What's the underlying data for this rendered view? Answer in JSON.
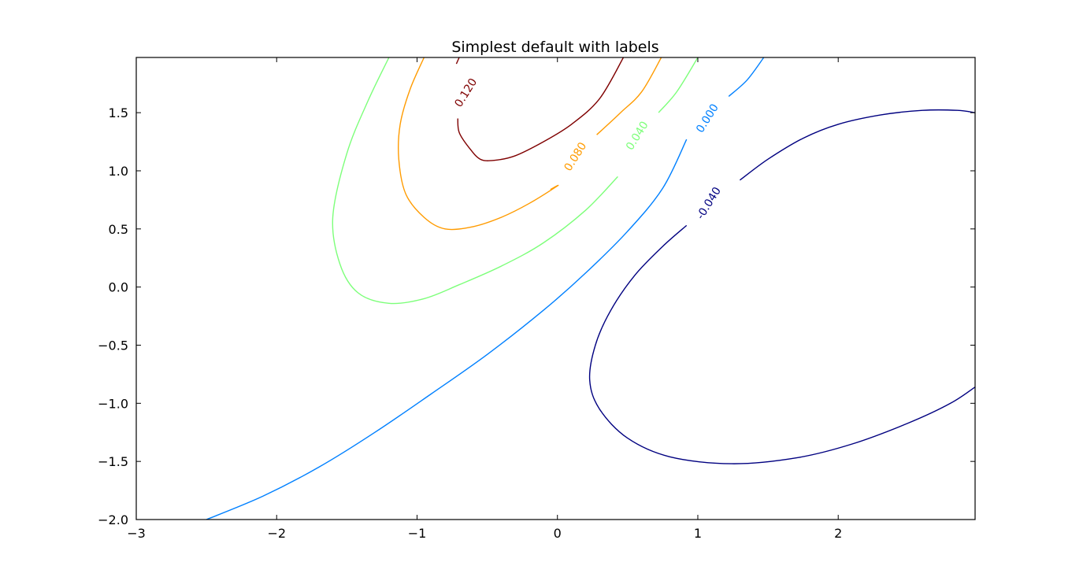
{
  "chart_data": {
    "type": "contour",
    "title": "Simplest default with labels",
    "xlabel": "",
    "ylabel": "",
    "xlim": [
      -3.0,
      2.975
    ],
    "ylim": [
      -2.0,
      1.975
    ],
    "grid": false,
    "x_ticks": [
      -3,
      -2,
      -1,
      0,
      1,
      2
    ],
    "x_tick_labels": [
      "−3",
      "−2",
      "−1",
      "0",
      "1",
      "2"
    ],
    "y_ticks": [
      -2.0,
      -1.5,
      -1.0,
      -0.5,
      0.0,
      0.5,
      1.0,
      1.5
    ],
    "y_tick_labels": [
      "−2.0",
      "−1.5",
      "−1.0",
      "−0.5",
      "0.0",
      "0.5",
      "1.0",
      "1.5"
    ],
    "levels": [
      {
        "value": 0.12,
        "label": "0.120",
        "color": "#7f0000",
        "label_at": [
          -0.65,
          1.67
        ],
        "segments": [
          [
            [
              -0.7,
              1.975
            ],
            [
              -0.72,
              1.92
            ]
          ],
          [
            [
              -0.71,
              1.45
            ],
            [
              -0.7,
              1.33
            ],
            [
              -0.63,
              1.2
            ],
            [
              -0.55,
              1.1
            ],
            [
              -0.45,
              1.09
            ],
            [
              -0.3,
              1.13
            ],
            [
              -0.1,
              1.25
            ],
            [
              0.1,
              1.4
            ],
            [
              0.3,
              1.62
            ],
            [
              0.47,
              1.975
            ]
          ]
        ]
      },
      {
        "value": 0.08,
        "label": "0.080",
        "color": "#ff9b00",
        "label_at": [
          0.13,
          1.12
        ],
        "segments": [
          [
            [
              -0.95,
              1.975
            ],
            [
              -1.05,
              1.7
            ],
            [
              -1.12,
              1.4
            ],
            [
              -1.13,
              1.1
            ],
            [
              -1.08,
              0.8
            ],
            [
              -0.95,
              0.6
            ],
            [
              -0.8,
              0.5
            ],
            [
              -0.6,
              0.52
            ],
            [
              -0.4,
              0.6
            ],
            [
              -0.2,
              0.72
            ],
            [
              0.0,
              0.87
            ],
            [
              -0.05,
              0.84
            ]
          ],
          [
            [
              0.28,
              1.31
            ],
            [
              0.45,
              1.5
            ],
            [
              0.6,
              1.68
            ],
            [
              0.74,
              1.975
            ]
          ]
        ]
      },
      {
        "value": 0.04,
        "label": "0.040",
        "color": "#7dff7a",
        "label_at": [
          0.57,
          1.3
        ],
        "segments": [
          [
            [
              -1.2,
              1.975
            ],
            [
              -1.35,
              1.6
            ],
            [
              -1.5,
              1.15
            ],
            [
              -1.6,
              0.6
            ],
            [
              -1.55,
              0.2
            ],
            [
              -1.42,
              -0.05
            ],
            [
              -1.2,
              -0.14
            ],
            [
              -0.95,
              -0.1
            ],
            [
              -0.7,
              0.02
            ],
            [
              -0.4,
              0.18
            ],
            [
              -0.1,
              0.38
            ],
            [
              0.2,
              0.66
            ],
            [
              0.43,
              0.95
            ]
          ],
          [
            [
              0.72,
              1.5
            ],
            [
              0.85,
              1.68
            ],
            [
              1.0,
              1.975
            ]
          ]
        ]
      },
      {
        "value": 0.0,
        "label": "0.000",
        "color": "#0080ff",
        "label_at": [
          1.07,
          1.45
        ],
        "segments": [
          [
            [
              -2.5,
              -2.0
            ],
            [
              -2.1,
              -1.8
            ],
            [
              -1.7,
              -1.55
            ],
            [
              -1.3,
              -1.25
            ],
            [
              -0.9,
              -0.92
            ],
            [
              -0.5,
              -0.58
            ],
            [
              -0.1,
              -0.2
            ],
            [
              0.2,
              0.12
            ],
            [
              0.5,
              0.48
            ],
            [
              0.75,
              0.85
            ],
            [
              0.92,
              1.27
            ]
          ],
          [
            [
              1.22,
              1.64
            ],
            [
              1.35,
              1.78
            ],
            [
              1.47,
              1.975
            ]
          ]
        ]
      },
      {
        "value": -0.04,
        "label": "-0.040",
        "color": "#000080",
        "label_at": [
          1.08,
          0.72
        ],
        "segments": [
          [
            [
              0.92,
              0.53
            ],
            [
              0.75,
              0.35
            ],
            [
              0.55,
              0.1
            ],
            [
              0.38,
              -0.2
            ],
            [
              0.27,
              -0.5
            ],
            [
              0.23,
              -0.8
            ],
            [
              0.3,
              -1.05
            ],
            [
              0.5,
              -1.3
            ],
            [
              0.8,
              -1.46
            ],
            [
              1.24,
              -1.52
            ],
            [
              1.7,
              -1.47
            ],
            [
              2.1,
              -1.35
            ],
            [
              2.5,
              -1.17
            ],
            [
              2.8,
              -1.0
            ],
            [
              2.975,
              -0.86
            ]
          ],
          [
            [
              1.3,
              0.92
            ],
            [
              1.5,
              1.1
            ],
            [
              1.75,
              1.28
            ],
            [
              2.0,
              1.4
            ],
            [
              2.3,
              1.48
            ],
            [
              2.6,
              1.52
            ],
            [
              2.85,
              1.52
            ],
            [
              2.975,
              1.5
            ]
          ]
        ]
      }
    ]
  }
}
